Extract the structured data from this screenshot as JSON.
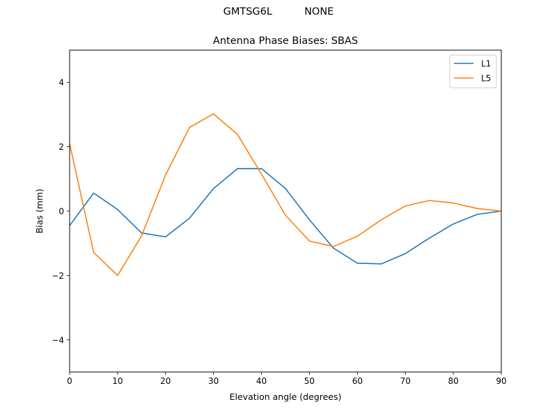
{
  "suptitle": {
    "left": "GMTSG6L",
    "right": "NONE"
  },
  "chart_data": {
    "type": "line",
    "title": "Antenna Phase Biases: SBAS",
    "xlabel": "Elevation angle (degrees)",
    "ylabel": "Bias (mm)",
    "xlim": [
      0,
      90
    ],
    "ylim": [
      -5,
      5
    ],
    "xticks": [
      0,
      10,
      20,
      30,
      40,
      50,
      60,
      70,
      80,
      90
    ],
    "yticks": [
      -4,
      -2,
      0,
      2,
      4
    ],
    "ytick_labels": [
      "−4",
      "−2",
      "0",
      "2",
      "4"
    ],
    "legend_position": "top-right",
    "grid": false,
    "x": [
      0,
      5,
      10,
      15,
      20,
      25,
      30,
      35,
      40,
      45,
      50,
      55,
      60,
      65,
      70,
      75,
      80,
      85,
      90
    ],
    "series": [
      {
        "name": "L1",
        "color": "#1f77b4",
        "values": [
          -0.45,
          0.56,
          0.05,
          -0.68,
          -0.8,
          -0.22,
          0.7,
          1.32,
          1.32,
          0.7,
          -0.27,
          -1.15,
          -1.62,
          -1.64,
          -1.32,
          -0.84,
          -0.4,
          -0.1,
          0.0
        ]
      },
      {
        "name": "L5",
        "color": "#ff7f0e",
        "values": [
          2.1,
          -1.28,
          -2.0,
          -0.77,
          1.12,
          2.6,
          3.02,
          2.38,
          1.15,
          -0.13,
          -0.93,
          -1.1,
          -0.78,
          -0.27,
          0.16,
          0.33,
          0.25,
          0.08,
          0.0
        ]
      }
    ]
  }
}
